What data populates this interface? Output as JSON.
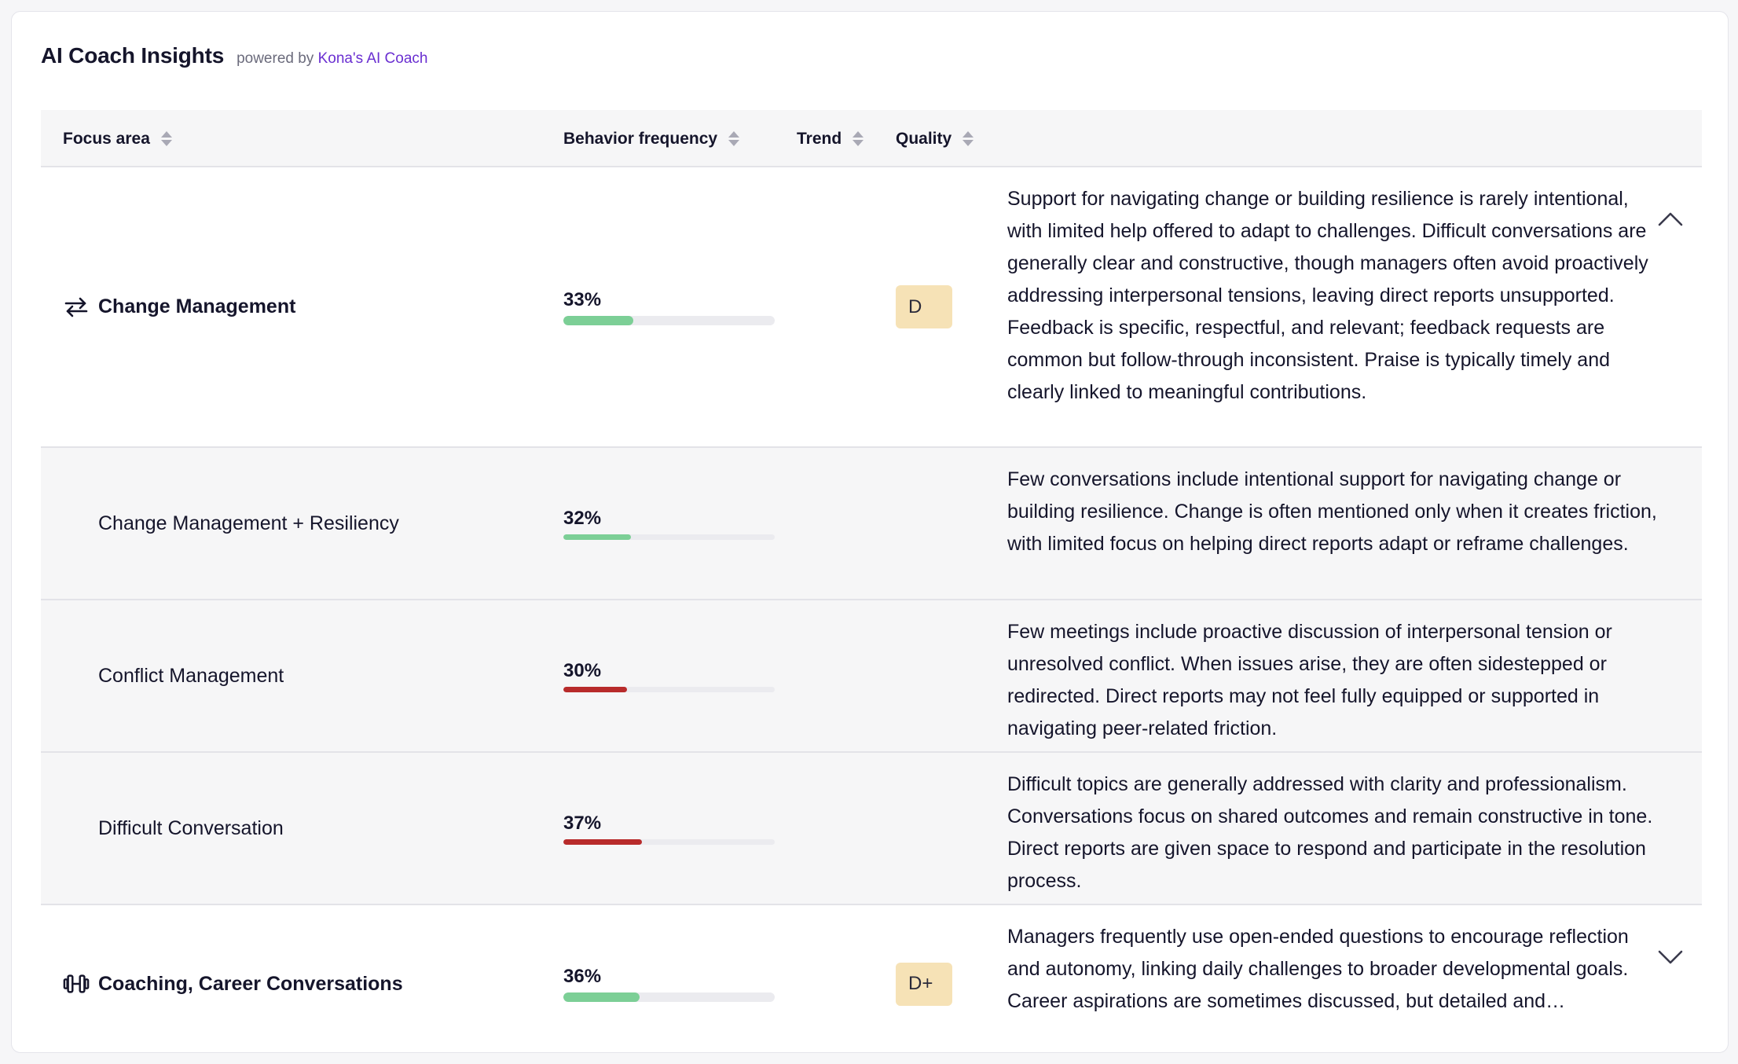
{
  "header": {
    "title": "AI Coach Insights",
    "powered_prefix": "powered by",
    "powered_brand": "Kona's AI Coach"
  },
  "columns": {
    "focus_area": "Focus area",
    "behavior_frequency": "Behavior frequency",
    "trend": "Trend",
    "quality": "Quality"
  },
  "colors": {
    "accent": "#6a2fd1",
    "bar_green": "#7ccf96",
    "bar_red": "#b82b2b",
    "badge_bg": "#f6e2b6"
  },
  "rows": [
    {
      "type": "parent",
      "icon": "arrows-swap-icon",
      "name": "Change Management",
      "frequency_label": "33%",
      "frequency": 0.33,
      "bar_color": "green",
      "quality": "D",
      "description": "Support for navigating change or building resilience is rarely intentional, with limited help offered to adapt to challenges. Difficult conversations are generally clear and constructive, though managers often avoid proactively addressing interpersonal tensions, leaving direct reports unsupported. Feedback is specific, respectful, and relevant; feedback requests are common but follow-through inconsistent. Praise is typically timely and clearly linked to meaningful contributions.",
      "expanded": true
    },
    {
      "type": "sub",
      "name": "Change Management + Resiliency",
      "frequency_label": "32%",
      "frequency": 0.32,
      "bar_color": "green",
      "description": "Few conversations include intentional support for navigating change or building resilience. Change is often mentioned only when it creates friction, with limited focus on helping direct reports adapt or reframe challenges."
    },
    {
      "type": "sub",
      "name": "Conflict Management",
      "frequency_label": "30%",
      "frequency": 0.3,
      "bar_color": "red",
      "description": "Few meetings include proactive discussion of interpersonal tension or unresolved conflict. When issues arise, they are often sidestepped or redirected. Direct reports may not feel fully equipped or supported in navigating peer-related friction."
    },
    {
      "type": "sub",
      "name": "Difficult Conversation",
      "frequency_label": "37%",
      "frequency": 0.37,
      "bar_color": "red",
      "description": "Difficult topics are generally addressed with clarity and professionalism. Conversations focus on shared outcomes and remain constructive in tone. Direct reports are given space to respond and participate in the resolution process."
    },
    {
      "type": "parent",
      "icon": "dumbbell-icon",
      "name": "Coaching, Career Conversations",
      "frequency_label": "36%",
      "frequency": 0.36,
      "bar_color": "green",
      "quality": "D+",
      "description": "Managers frequently use open-ended questions to encourage reflection and autonomy, linking daily challenges to broader developmental goals. Career aspirations are sometimes discussed, but detailed and…",
      "expanded": false
    }
  ]
}
